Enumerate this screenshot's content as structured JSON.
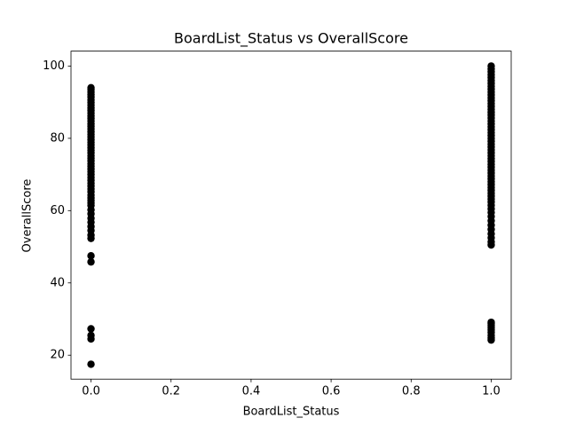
{
  "chart_data": {
    "type": "scatter",
    "title": "BoardList_Status vs OverallScore",
    "x_label": "BoardList_Status",
    "y_label": "OverallScore",
    "color": "#000000",
    "x": [
      0,
      0,
      0,
      0,
      0,
      0,
      0,
      0,
      0,
      0,
      0,
      0,
      0,
      0,
      0,
      0,
      0,
      0,
      0,
      0,
      0,
      0,
      0,
      0,
      0,
      0,
      0,
      0,
      0,
      0,
      0,
      0,
      0,
      0,
      0,
      0,
      0,
      0,
      0,
      0,
      0,
      0,
      0,
      0,
      0,
      0,
      0,
      0,
      0,
      0,
      0,
      0,
      0,
      0,
      0,
      0,
      0,
      0,
      0,
      1,
      1,
      1,
      1,
      1,
      1,
      1,
      1,
      1,
      1,
      1,
      1,
      1,
      1,
      1,
      1,
      1,
      1,
      1,
      1,
      1,
      1,
      1,
      1,
      1,
      1,
      1,
      1,
      1,
      1,
      1,
      1,
      1,
      1,
      1,
      1,
      1,
      1,
      1,
      1,
      1,
      1,
      1,
      1,
      1,
      1,
      1,
      1,
      1,
      1,
      1,
      1,
      1,
      1,
      1,
      1,
      1,
      1,
      1,
      1,
      1,
      1,
      1,
      1,
      1,
      1,
      1,
      1
    ],
    "values": [
      17.5,
      24.5,
      25.5,
      27.3,
      45.8,
      47.5,
      52.3,
      53.2,
      54.5,
      55.6,
      56.8,
      57.9,
      59.1,
      60.2,
      61.4,
      62.1,
      62.8,
      63.5,
      64.3,
      65.2,
      66.0,
      66.8,
      67.6,
      68.4,
      69.2,
      70.0,
      70.8,
      71.5,
      72.3,
      73.0,
      73.8,
      74.5,
      75.2,
      76.0,
      76.7,
      77.4,
      78.2,
      78.9,
      79.6,
      80.4,
      81.1,
      81.8,
      82.6,
      83.3,
      84.0,
      84.8,
      85.5,
      86.2,
      87.0,
      87.7,
      88.4,
      89.2,
      89.9,
      90.6,
      91.4,
      92.1,
      92.8,
      93.5,
      94.0,
      24.2,
      24.8,
      25.5,
      26.3,
      27.0,
      27.6,
      28.2,
      28.7,
      29.1,
      50.5,
      51.4,
      52.5,
      53.6,
      54.8,
      56.0,
      57.2,
      58.4,
      59.5,
      60.5,
      61.5,
      62.4,
      63.2,
      64.0,
      64.8,
      65.6,
      66.4,
      67.2,
      68.0,
      68.8,
      69.6,
      70.4,
      71.2,
      72.0,
      72.8,
      73.6,
      74.4,
      75.2,
      76.0,
      76.8,
      77.6,
      78.4,
      79.2,
      80.0,
      80.8,
      81.6,
      82.4,
      83.2,
      84.0,
      84.8,
      85.6,
      86.4,
      87.2,
      88.0,
      88.8,
      89.6,
      90.4,
      91.2,
      92.0,
      92.8,
      93.6,
      94.4,
      95.2,
      96.0,
      96.8,
      97.6,
      98.4,
      99.2,
      100
    ],
    "xlim": [
      -0.05,
      1.05
    ],
    "ylim": [
      13.375,
      104.125
    ],
    "xticks": [
      {
        "value": 0,
        "label": "0.0"
      },
      0.2,
      0.4,
      0.6,
      0.8,
      {
        "value": 1,
        "label": "1.0"
      }
    ],
    "yticks": [
      20,
      40,
      60,
      80,
      100
    ],
    "grid": false
  }
}
